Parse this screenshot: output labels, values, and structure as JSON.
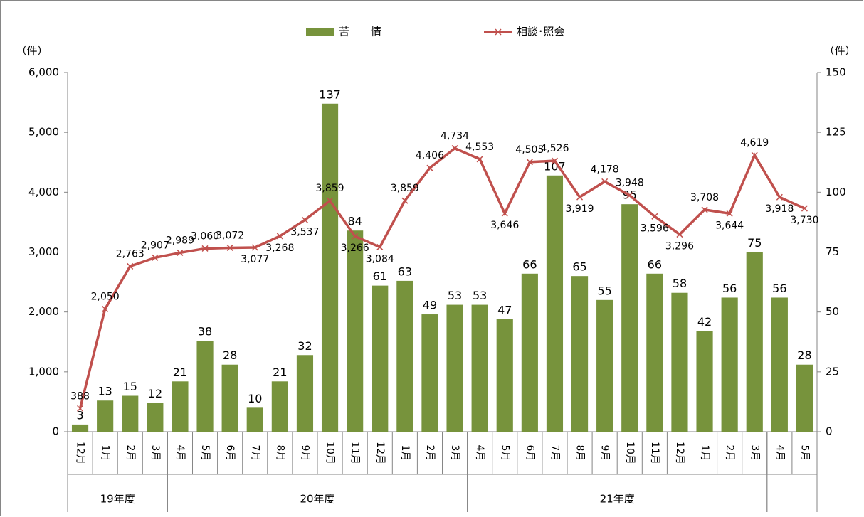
{
  "chart_data": {
    "type": "bar-line",
    "y_axis_label": "（件）",
    "y2_axis_label": "（件）",
    "category_groups": [
      {
        "label": "19年度",
        "categories": [
          "12月",
          "1月",
          "2月",
          "3月"
        ]
      },
      {
        "label": "20年度",
        "categories": [
          "4月",
          "5月",
          "6月",
          "7月",
          "8月",
          "9月",
          "10月",
          "11月",
          "12月",
          "1月",
          "2月",
          "3月"
        ]
      },
      {
        "label": "21年度",
        "categories": [
          "4月",
          "5月",
          "6月",
          "7月",
          "8月",
          "9月",
          "10月",
          "11月",
          "12月",
          "1月",
          "2月",
          "3月"
        ]
      },
      {
        "label": null,
        "categories": [
          "4月",
          "5月"
        ]
      }
    ],
    "ylim": [
      0,
      6000
    ],
    "yticks": [
      0,
      {
        "value": 1000,
        "label": "1,000"
      },
      {
        "value": 2000,
        "label": "2,000"
      },
      {
        "value": 3000,
        "label": "3,000"
      },
      {
        "value": 4000,
        "label": "4,000"
      },
      {
        "value": 5000,
        "label": "5,000"
      },
      {
        "value": 6000,
        "label": "6,000"
      }
    ],
    "y2lim": [
      0,
      150
    ],
    "y2ticks": [
      0,
      25,
      50,
      75,
      100,
      125,
      150
    ],
    "series": [
      {
        "name": "苦　　情",
        "type": "bar",
        "axis": "y2",
        "color": "#77933c",
        "values": [
          3,
          13,
          15,
          12,
          21,
          38,
          28,
          10,
          21,
          32,
          137,
          84,
          61,
          63,
          49,
          53,
          53,
          47,
          66,
          107,
          65,
          55,
          95,
          66,
          58,
          42,
          56,
          75,
          56,
          28
        ]
      },
      {
        "name": "相談･照会",
        "type": "line",
        "color": "#c0504d",
        "values": [
          388,
          2050,
          2763,
          2907,
          2989,
          3060,
          3072,
          3077,
          3268,
          3537,
          3859,
          3266,
          3084,
          3859,
          4406,
          4734,
          4553,
          3646,
          4505,
          4526,
          3919,
          4178,
          3948,
          3596,
          3296,
          3708,
          3644,
          4619,
          3918,
          3730
        ],
        "value_labels": [
          "388",
          "2,050",
          "2,763",
          "2,907",
          "2,989",
          "3,060",
          "3,072",
          "3,077",
          "3,268",
          "3,537",
          "3,859",
          "3,266",
          "3,084",
          "3,859",
          "4,406",
          "4,734",
          "4,553",
          "3,646",
          "4,505",
          "4,526",
          "3,919",
          "4,178",
          "3,948",
          "3,596",
          "3,296",
          "3,708",
          "3,644",
          "4,619",
          "3,918",
          "3,730"
        ]
      }
    ]
  }
}
